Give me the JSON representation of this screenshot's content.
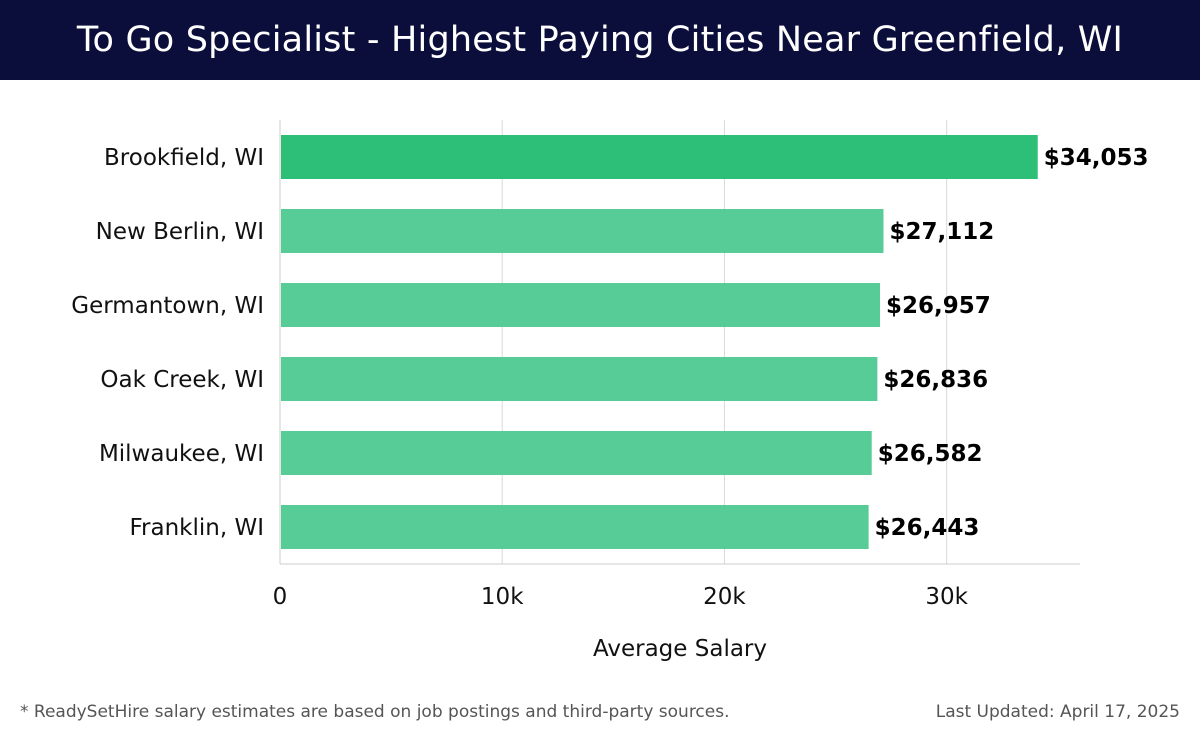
{
  "header": {
    "title": "To Go Specialist - Highest Paying Cities Near Greenfield, WI"
  },
  "chart_data": {
    "type": "bar",
    "orientation": "horizontal",
    "title": "To Go Specialist - Highest Paying Cities Near Greenfield, WI",
    "categories": [
      "Brookfield, WI",
      "New Berlin, WI",
      "Germantown, WI",
      "Oak Creek, WI",
      "Milwaukee, WI",
      "Franklin, WI"
    ],
    "values": [
      34053,
      27112,
      26957,
      26836,
      26582,
      26443
    ],
    "value_labels": [
      "$34,053",
      "$27,112",
      "$26,957",
      "$26,836",
      "$26,582",
      "$26,443"
    ],
    "xlabel": "Average Salary",
    "ylabel": "",
    "xlim": [
      0,
      36000
    ],
    "xticks": [
      0,
      10000,
      20000,
      30000
    ],
    "xtick_labels": [
      "0",
      "10k",
      "20k",
      "30k"
    ],
    "grid": true,
    "colors": {
      "highlight": "#2dbf78",
      "bar": "#57cc96",
      "grid": "#d9d9d9",
      "axis": "#cccccc"
    }
  },
  "footer": {
    "note": "* ReadySetHire salary estimates are based on job postings and third-party sources.",
    "updated": "Last Updated: April 17, 2025"
  }
}
